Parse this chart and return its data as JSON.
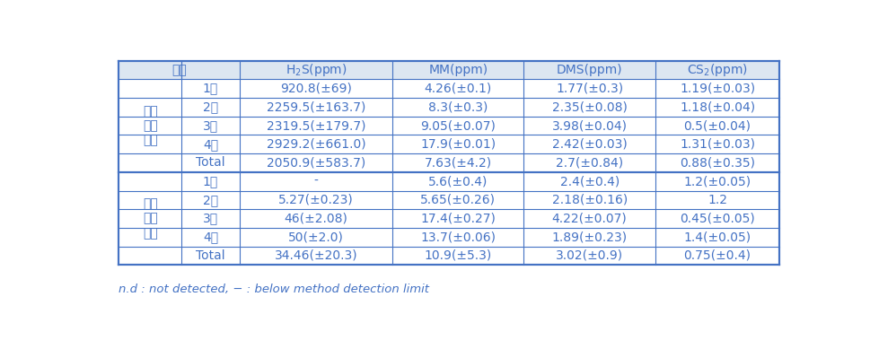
{
  "header_col01": "구분",
  "header_cols": [
    "H₂S(ppm)",
    "MM(ppm)",
    "DMS(ppm)",
    "CS₂(ppm)"
  ],
  "section1_label": "탈황\n설비\n전단",
  "section2_label": "탈황\n설비\n후단",
  "section1_rows": [
    [
      "1회",
      "920.8(±69)",
      "4.26(±0.1)",
      "1.77(±0.3)",
      "1.19(±0.03)"
    ],
    [
      "2회",
      "2259.5(±163.7)",
      "8.3(±0.3)",
      "2.35(±0.08)",
      "1.18(±0.04)"
    ],
    [
      "3회",
      "2319.5(±179.7)",
      "9.05(±0.07)",
      "3.98(±0.04)",
      "0.5(±0.04)"
    ],
    [
      "4회",
      "2929.2(±661.0)",
      "17.9(±0.01)",
      "2.42(±0.03)",
      "1.31(±0.03)"
    ],
    [
      "Total",
      "2050.9(±583.7)",
      "7.63(±4.2)",
      "2.7(±0.84)",
      "0.88(±0.35)"
    ]
  ],
  "section2_rows": [
    [
      "1회",
      "-",
      "5.6(±0.4)",
      "2.4(±0.4)",
      "1.2(±0.05)"
    ],
    [
      "2회",
      "5.27(±0.23)",
      "5.65(±0.26)",
      "2.18(±0.16)",
      "1.2"
    ],
    [
      "3회",
      "46(±2.08)",
      "17.4(±0.27)",
      "4.22(±0.07)",
      "0.45(±0.05)"
    ],
    [
      "4회",
      "50(±2.0)",
      "13.7(±0.06)",
      "1.89(±0.23)",
      "1.4(±0.05)"
    ],
    [
      "Total",
      "34.46(±20.3)",
      "10.9(±5.3)",
      "3.02(±0.9)",
      "0.75(±0.4)"
    ]
  ],
  "footnote": "n.d : not detected, − : below method detection limit",
  "border_color": "#4472c4",
  "text_color": "#4472c4",
  "bg_color": "#ffffff",
  "header_bg": "#dce6f1",
  "font_size": 10,
  "footnote_font_size": 9.5
}
